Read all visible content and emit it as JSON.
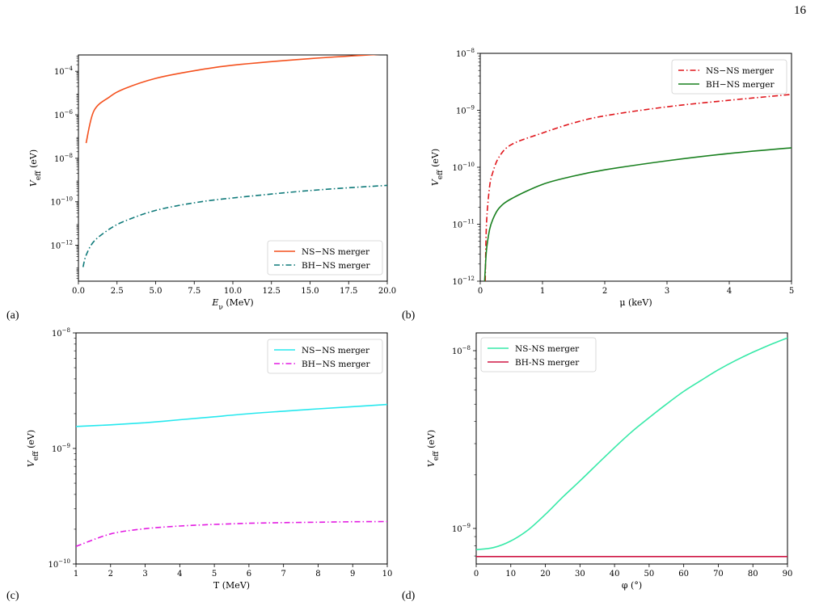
{
  "page_number": "16",
  "colors": {
    "ns_ns_a": "#f4511e",
    "bh_ns_a": "#0f7a7a",
    "ns_ns_b": "#e0161c",
    "bh_ns_b": "#19801f",
    "ns_ns_c": "#26e8ee",
    "bh_ns_c": "#e31ce2",
    "ns_ns_d": "#37e9a8",
    "bh_ns_d": "#cf1745"
  },
  "chart_data": [
    {
      "panel": "(a)",
      "type": "line",
      "xlabel": "E_ν (MeV)",
      "ylabel": "V_eff (eV)",
      "xlim": [
        0,
        20
      ],
      "ylim_log10": [
        -13.65,
        -3.25
      ],
      "y_scale": "log",
      "xticks": [
        "0.0",
        "2.5",
        "5.0",
        "7.5",
        "10.0",
        "12.5",
        "15.0",
        "17.5",
        "20.0"
      ],
      "yticks": [
        -12,
        -10,
        -8,
        -6,
        -4
      ],
      "legend_position": "lower-right",
      "series": [
        {
          "name": "NS−NS merger",
          "style": "solid",
          "x": [
            0.5,
            1,
            2,
            3,
            5,
            7.5,
            10,
            15,
            20
          ],
          "y": [
            5e-08,
            1.5e-06,
            6.5e-06,
            1.6e-05,
            4.7e-05,
            0.000105,
            0.00019,
            0.00038,
            0.00063
          ]
        },
        {
          "name": "BH−NS merger",
          "style": "dashdot",
          "x": [
            0.3,
            0.5,
            1,
            2,
            3,
            5,
            7.5,
            10,
            15,
            20
          ],
          "y": [
            1e-13,
            3.5e-13,
            1.5e-12,
            5.5e-12,
            1.3e-11,
            4e-11,
            9e-11,
            1.5e-10,
            3.3e-10,
            5.7e-10
          ]
        }
      ]
    },
    {
      "panel": "(b)",
      "type": "line",
      "xlabel": "μ (keV)",
      "ylabel": "V_eff (eV)",
      "xlim": [
        0,
        5
      ],
      "ylim_log10": [
        -12,
        -8
      ],
      "y_scale": "log",
      "xticks": [
        "0",
        "1",
        "2",
        "3",
        "4",
        "5"
      ],
      "yticks": [
        -12,
        -11,
        -10,
        -9,
        -8
      ],
      "legend_position": "upper-right",
      "series": [
        {
          "name": "NS−NS merger",
          "style": "dashdot",
          "x": [
            0.08,
            0.1,
            0.15,
            0.2,
            0.3,
            0.5,
            1,
            1.5,
            2,
            3,
            4,
            5
          ],
          "y": [
            1e-12,
            1e-11,
            4.5e-11,
            8e-11,
            1.5e-10,
            2.5e-10,
            4e-10,
            6e-10,
            8e-10,
            1.15e-09,
            1.5e-09,
            1.9e-09
          ]
        },
        {
          "name": "BH−NS merger",
          "style": "solid",
          "x": [
            0.07,
            0.1,
            0.15,
            0.2,
            0.3,
            0.5,
            1,
            1.5,
            2,
            3,
            4,
            5
          ],
          "y": [
            1e-12,
            3.5e-12,
            8e-12,
            1.2e-11,
            1.9e-11,
            2.8e-11,
            5e-11,
            7e-11,
            9e-11,
            1.3e-10,
            1.75e-10,
            2.2e-10
          ]
        }
      ]
    },
    {
      "panel": "(c)",
      "type": "line",
      "xlabel": "T (MeV)",
      "ylabel": "V_eff (eV)",
      "xlim": [
        1,
        10
      ],
      "ylim_log10": [
        -10,
        -8
      ],
      "y_scale": "log",
      "xticks": [
        "1",
        "2",
        "3",
        "4",
        "5",
        "6",
        "7",
        "8",
        "9",
        "10"
      ],
      "yticks": [
        -10,
        -9,
        -8
      ],
      "legend_position": "upper-right",
      "series": [
        {
          "name": "NS−NS merger",
          "style": "solid",
          "x": [
            1,
            2,
            3,
            4,
            5,
            6,
            7,
            8,
            9,
            10
          ],
          "y": [
            1.55e-09,
            1.6e-09,
            1.67e-09,
            1.77e-09,
            1.88e-09,
            2e-09,
            2.1e-09,
            2.2e-09,
            2.3e-09,
            2.4e-09
          ]
        },
        {
          "name": "BH−NS merger",
          "style": "dashdot",
          "x": [
            1,
            2,
            3,
            4,
            5,
            6,
            7,
            8,
            9,
            10
          ],
          "y": [
            1.42e-10,
            1.82e-10,
            2.02e-10,
            2.13e-10,
            2.2e-10,
            2.25e-10,
            2.28e-10,
            2.3e-10,
            2.32e-10,
            2.33e-10
          ]
        }
      ]
    },
    {
      "panel": "(d)",
      "type": "line",
      "xlabel": "φ (°)",
      "ylabel": "V_eff (eV)",
      "xlim": [
        0,
        90
      ],
      "ylim_log10": [
        -9.2,
        -7.9
      ],
      "y_scale": "log",
      "xticks": [
        "0",
        "10",
        "20",
        "30",
        "40",
        "50",
        "60",
        "70",
        "80",
        "90"
      ],
      "yticks": [
        -9,
        -8
      ],
      "legend_position": "upper-left",
      "series": [
        {
          "name": "NS-NS merger",
          "style": "solid",
          "x": [
            0,
            5,
            10,
            15,
            20,
            25,
            30,
            35,
            40,
            45,
            50,
            55,
            60,
            65,
            70,
            75,
            80,
            85,
            90
          ],
          "y": [
            7.6e-10,
            7.8e-10,
            8.5e-10,
            9.8e-10,
            1.2e-09,
            1.5e-09,
            1.85e-09,
            2.3e-09,
            2.85e-09,
            3.5e-09,
            4.2e-09,
            5e-09,
            5.9e-09,
            6.8e-09,
            7.8e-09,
            8.8e-09,
            9.8e-09,
            1.08e-08,
            1.18e-08
          ]
        },
        {
          "name": "BH-NS merger",
          "style": "solid",
          "x": [
            0,
            90
          ],
          "y": [
            6.95e-10,
            6.95e-10
          ]
        }
      ]
    }
  ]
}
